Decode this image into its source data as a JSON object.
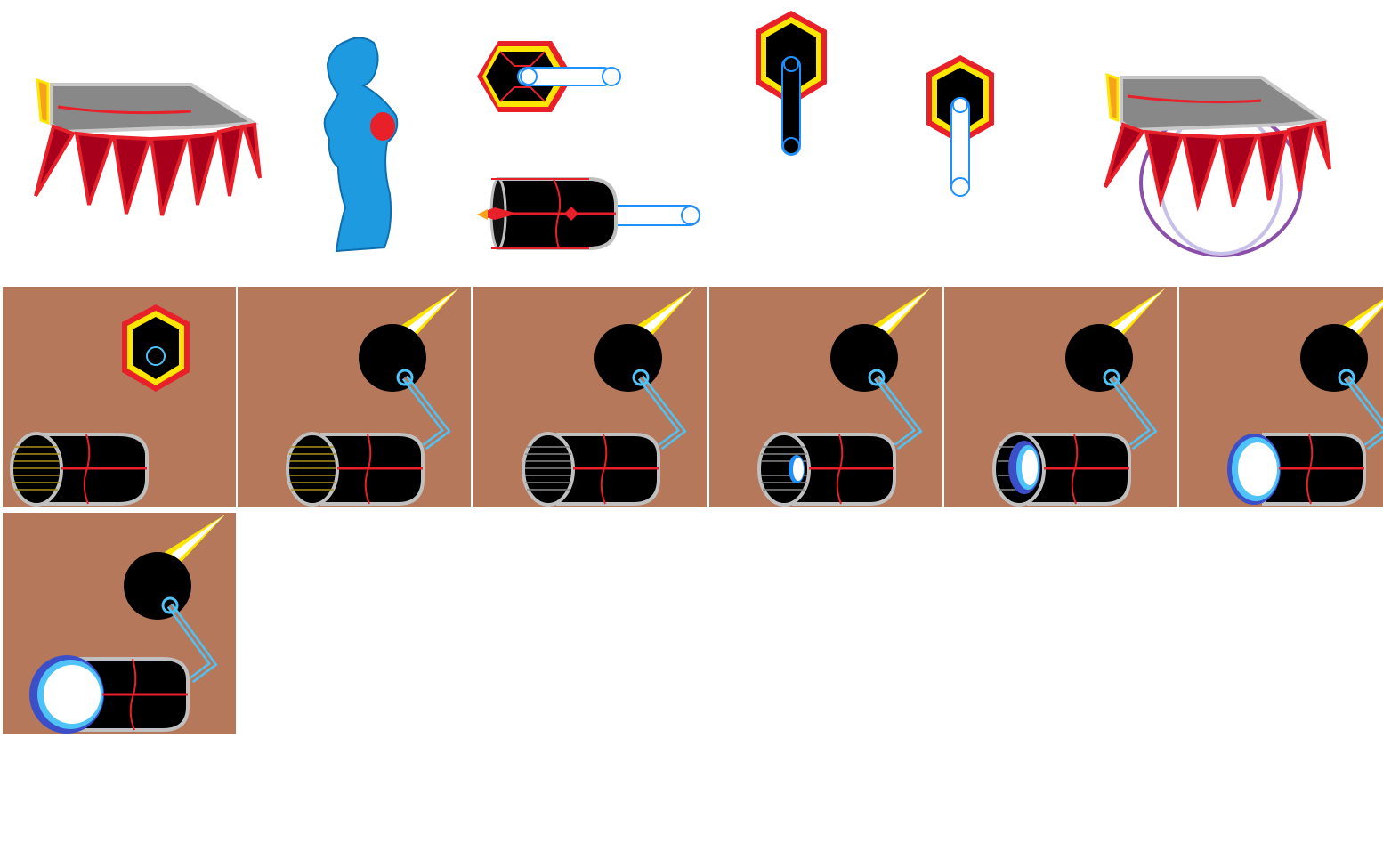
{
  "sheet": {
    "background": "#ffffff",
    "tile_color": "#b5785a"
  },
  "sprites_row1": [
    {
      "name": "spiked-lid-sprite",
      "icon": "spiked-lid-icon"
    },
    {
      "name": "blue-statue-sprite",
      "icon": "statue-icon"
    },
    {
      "name": "hex-core-arm-sprite",
      "icon": "hex-core-icon"
    },
    {
      "name": "cannon-barrel-sprite",
      "icon": "cannon-icon"
    },
    {
      "name": "hex-core-vertical-sprite",
      "icon": "hex-core-icon"
    },
    {
      "name": "hex-core-small-sprite",
      "icon": "hex-core-icon"
    },
    {
      "name": "spiked-lid-bubble-sprite",
      "icon": "spiked-lid-icon"
    }
  ],
  "animation_frames": [
    {
      "frame": 1,
      "state": "hex-core",
      "charge": 0
    },
    {
      "frame": 2,
      "state": "bomb-arm",
      "charge": 0
    },
    {
      "frame": 3,
      "state": "bomb-arm",
      "charge": 0.1
    },
    {
      "frame": 4,
      "state": "bomb-arm",
      "charge": 0.35
    },
    {
      "frame": 5,
      "state": "bomb-arm",
      "charge": 0.6
    },
    {
      "frame": 6,
      "state": "bomb-arm",
      "charge": 0.85
    },
    {
      "frame": 7,
      "state": "bomb-arm",
      "charge": 1.0
    }
  ],
  "colors": {
    "red": "#e8202a",
    "dark_red": "#a8001c",
    "yellow": "#ffe600",
    "orange": "#f6a21e",
    "grey": "#888888",
    "light_grey": "#c0c0c0",
    "blue": "#1e90ff",
    "cyan": "#4fc3f7",
    "statue_blue": "#1e9ae0",
    "purple": "#8a4fa8"
  }
}
